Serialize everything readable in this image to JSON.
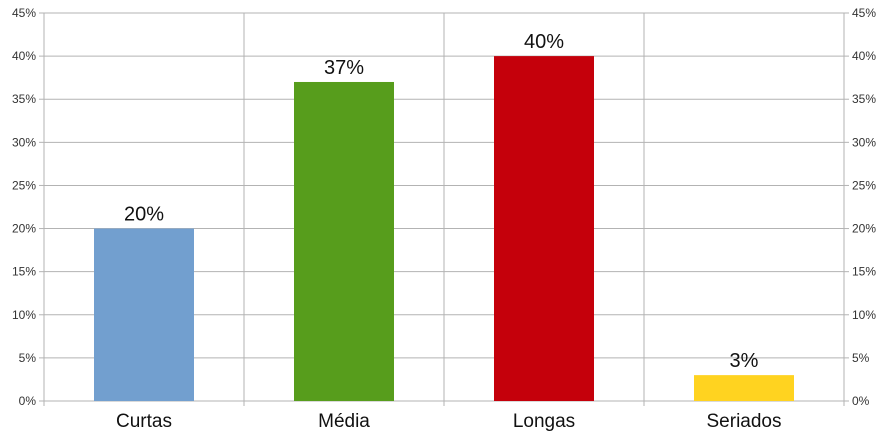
{
  "chart_data": {
    "type": "bar",
    "title": "",
    "xlabel": "",
    "ylabel": "",
    "categories": [
      "Curtas",
      "Média",
      "Longas",
      "Seriados"
    ],
    "values": [
      20,
      37,
      40,
      3
    ],
    "data_labels": [
      "20%",
      "37%",
      "40%",
      "3%"
    ],
    "colors": [
      "#729fcf",
      "#579d1c",
      "#c5000b",
      "#ffd320"
    ],
    "ylim": [
      0,
      45
    ],
    "ystep": 5,
    "y_tick_labels": [
      "0%",
      "5%",
      "10%",
      "15%",
      "20%",
      "25%",
      "30%",
      "35%",
      "40%",
      "45%"
    ],
    "grid": true,
    "secondary_y_axis": true,
    "legend": "none"
  }
}
